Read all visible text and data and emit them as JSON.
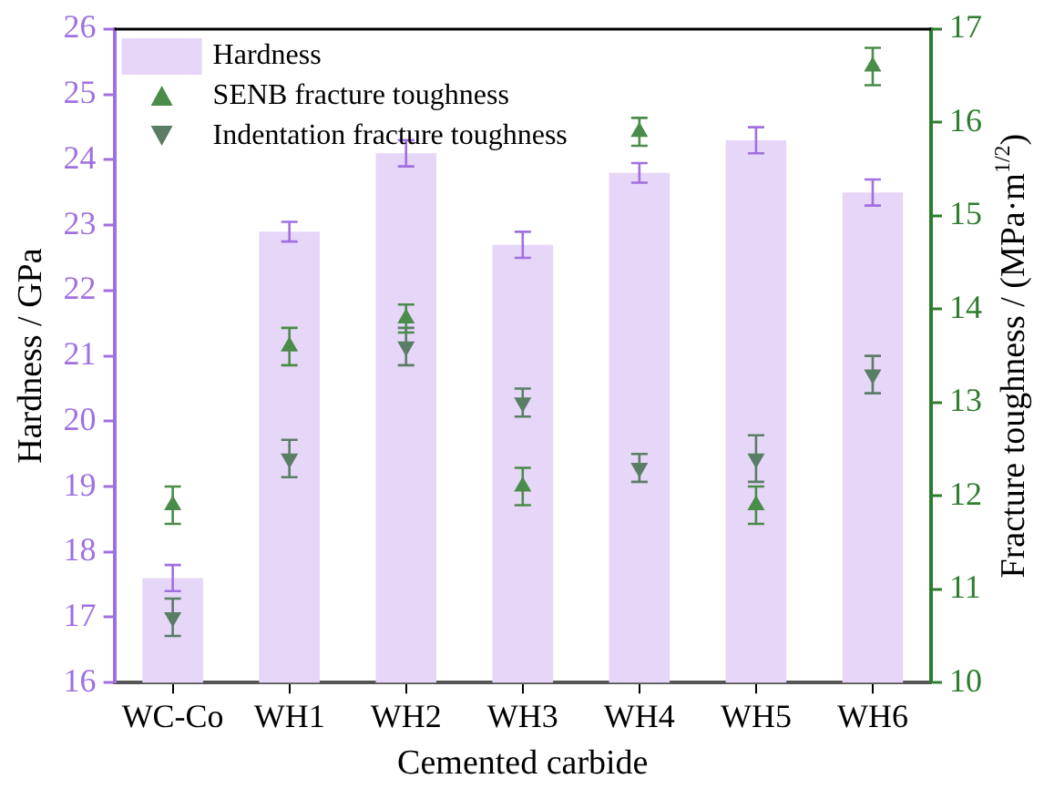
{
  "chart_data": {
    "type": "bar",
    "xlabel": "Cemented carbide",
    "ylabel": "Hardness / GPa",
    "y2label": "Fracture toughness / (MPa·m$^{1/2}$)",
    "categories": [
      "WC-Co",
      "WH1",
      "WH2",
      "WH3",
      "WH4",
      "WH5",
      "WH6"
    ],
    "series": [
      {
        "name": "Hardness",
        "color": "#e6d6f7",
        "values": [
          17.6,
          22.9,
          24.1,
          22.7,
          23.8,
          24.3,
          23.5
        ],
        "errors": [
          0.2,
          0.15,
          0.2,
          0.2,
          0.15,
          0.2,
          0.2
        ]
      },
      {
        "name": "SENB fracture toughness",
        "type": "scatter",
        "axis": "y2",
        "marker": "triangle",
        "color": "#4a8c4a",
        "values": [
          11.9,
          13.6,
          13.9,
          12.1,
          15.9,
          11.9,
          16.6
        ],
        "errors": [
          0.2,
          0.2,
          0.15,
          0.2,
          0.15,
          0.2,
          0.2
        ]
      },
      {
        "name": "Indentation fracture toughness",
        "type": "scatter",
        "axis": "y2",
        "marker": "triangle-down",
        "color": "#5a7d66",
        "values": [
          10.7,
          12.4,
          13.6,
          13.0,
          12.3,
          12.4,
          13.3
        ],
        "errors": [
          0.2,
          0.2,
          0.2,
          0.15,
          0.15,
          0.25,
          0.2
        ]
      }
    ],
    "ylim": [
      16,
      26
    ],
    "yticks": [
      16,
      17,
      18,
      19,
      20,
      21,
      22,
      23,
      24,
      25,
      26
    ],
    "y2lim": [
      10,
      17
    ],
    "y2ticks": [
      10,
      11,
      12,
      13,
      14,
      15,
      16,
      17
    ],
    "legend": "top left",
    "grid": false
  }
}
